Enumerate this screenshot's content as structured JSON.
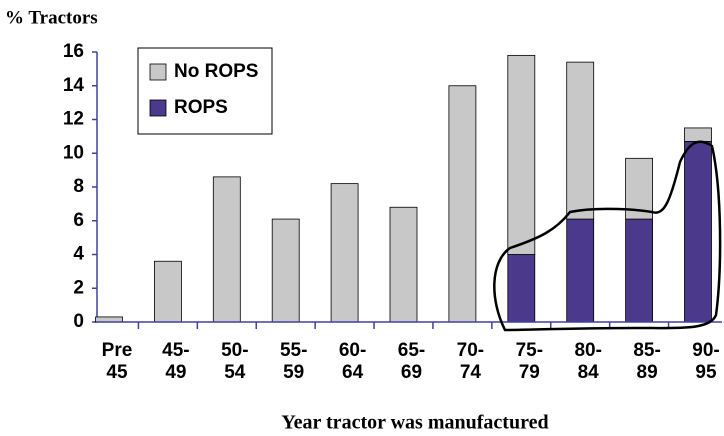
{
  "chart_data": {
    "type": "stacked_bar",
    "y_label": "% Tractors",
    "x_label": "Year tractor was manufactured",
    "categories": [
      "Pre\n45",
      "45-\n49",
      "50-\n54",
      "55-\n59",
      "60-\n64",
      "65-\n69",
      "70-\n74",
      "75-\n79",
      "80-\n84",
      "85-\n89",
      "90-\n95"
    ],
    "series": [
      {
        "name": "No ROPS",
        "color": "#c8c8c8",
        "values": [
          0.3,
          3.6,
          8.6,
          6.1,
          8.2,
          6.8,
          14.0,
          11.8,
          9.3,
          3.6,
          0.8
        ]
      },
      {
        "name": "ROPS",
        "color": "#4b3a8c",
        "values": [
          0,
          0,
          0,
          0,
          0,
          0,
          0,
          4.0,
          6.1,
          6.1,
          10.7
        ]
      }
    ],
    "ylim": [
      0,
      16
    ],
    "yticks": [
      0,
      2,
      4,
      6,
      8,
      10,
      12,
      14,
      16
    ]
  }
}
